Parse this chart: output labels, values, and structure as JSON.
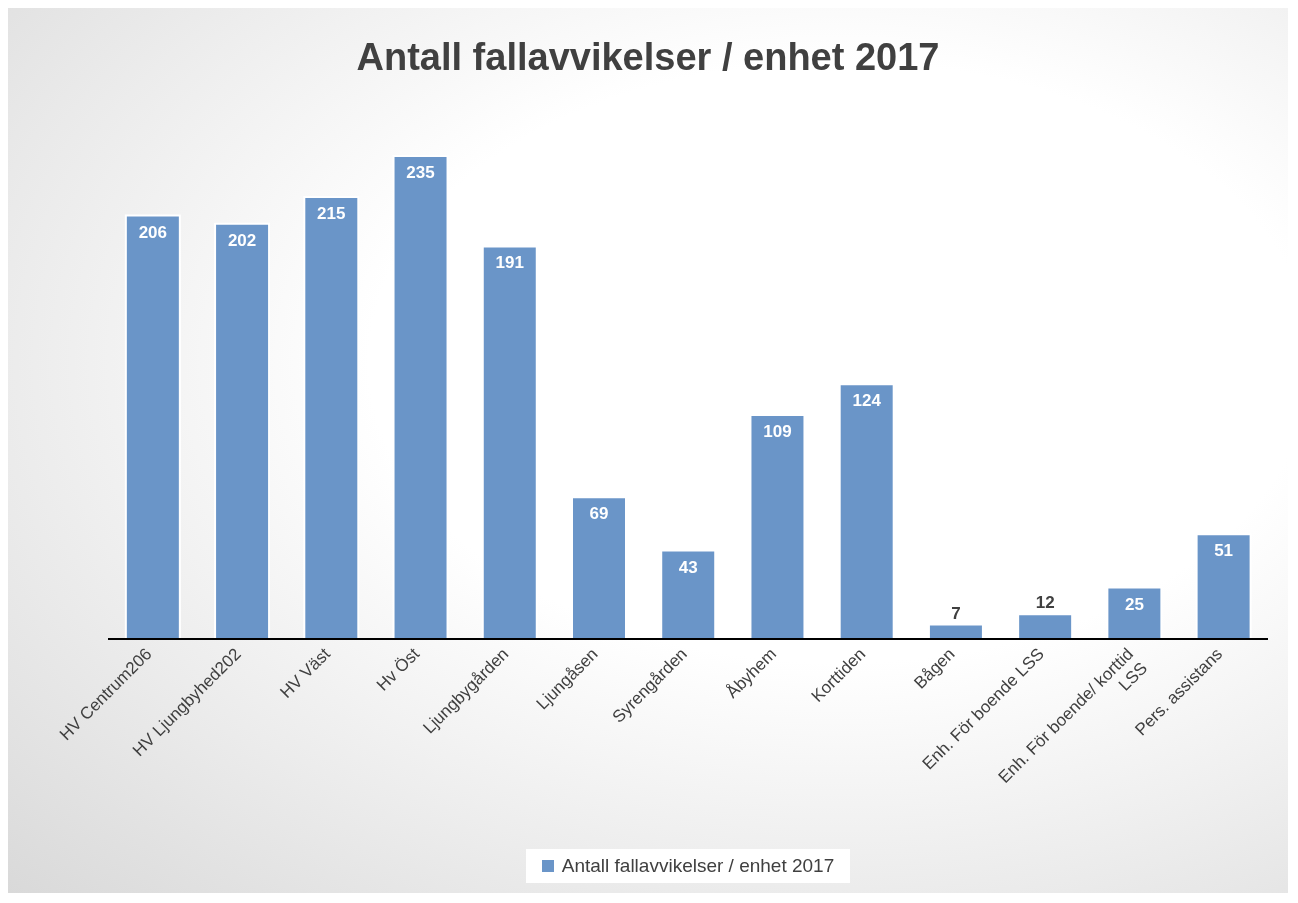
{
  "chart_data": {
    "type": "bar",
    "title": "Antall fallavvikelser / enhet 2017",
    "categories": [
      "HV Centrum206",
      "HV Ljungbyhed202",
      "HV Väst",
      "Hv Öst",
      "Ljungbygården",
      "Ljungåsen",
      "Syrengården",
      "Åbyhem",
      "Korttiden",
      "Bågen",
      "Enh. För boende LSS",
      "Enh. För boende/ korttid LSS",
      "Pers. assistans"
    ],
    "series": [
      {
        "name": "Antall fallavvikelser / enhet 2017",
        "color": "#6a95c8",
        "values": [
          206,
          202,
          215,
          235,
          191,
          69,
          43,
          109,
          124,
          7,
          12,
          25,
          51
        ]
      }
    ],
    "data_labels": true,
    "legend": "bottom",
    "grid": false
  }
}
